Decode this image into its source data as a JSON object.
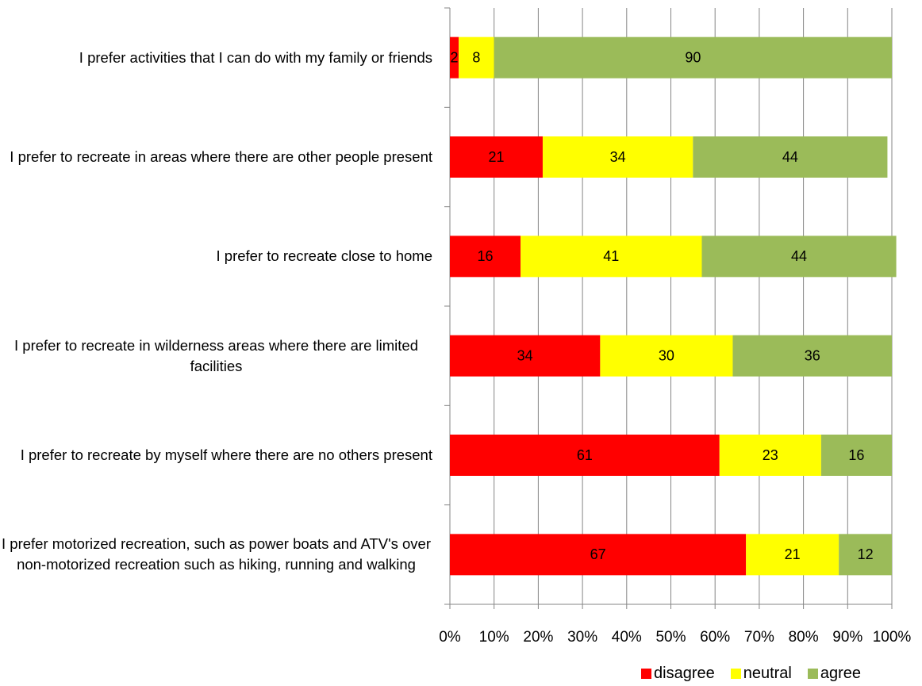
{
  "chart_data": {
    "type": "bar",
    "orientation": "horizontal",
    "stacked": true,
    "categories": [
      "I prefer activities that I can do with my family or friends",
      "I prefer to recreate in areas where there are other people present",
      "I prefer to recreate close to home",
      "I prefer to recreate in wilderness areas where there are limited facilities",
      "I prefer to recreate by myself where there are no others present",
      "I prefer motorized recreation, such as power boats and ATV's over non-motorized recreation such as hiking, running and walking"
    ],
    "series": [
      {
        "name": "disagree",
        "color": "#ff0000",
        "values": [
          2,
          21,
          16,
          34,
          61,
          67
        ]
      },
      {
        "name": "neutral",
        "color": "#ffff00",
        "values": [
          8,
          34,
          41,
          30,
          23,
          21
        ]
      },
      {
        "name": "agree",
        "color": "#9bbb59",
        "values": [
          90,
          44,
          44,
          36,
          16,
          12
        ]
      }
    ],
    "xlim": [
      0,
      100
    ],
    "xticks": [
      {
        "value": 0,
        "label": "0%"
      },
      {
        "value": 10,
        "label": "10%"
      },
      {
        "value": 20,
        "label": "20%"
      },
      {
        "value": 30,
        "label": "30%"
      },
      {
        "value": 40,
        "label": "40%"
      },
      {
        "value": 50,
        "label": "50%"
      },
      {
        "value": 60,
        "label": "60%"
      },
      {
        "value": 70,
        "label": "70%"
      },
      {
        "value": 80,
        "label": "80%"
      },
      {
        "value": 90,
        "label": "90%"
      },
      {
        "value": 100,
        "label": "100%"
      }
    ],
    "grid": true,
    "legend": "bottom"
  }
}
